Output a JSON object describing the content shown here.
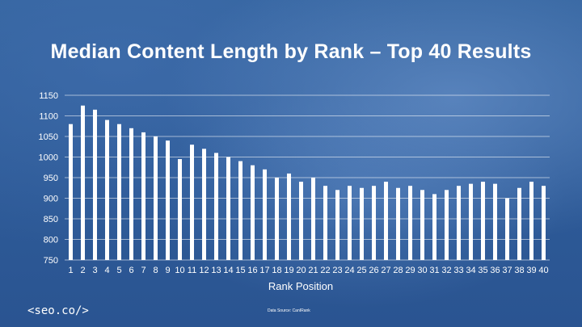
{
  "title": "Median Content Length by Rank – Top 40 Results",
  "logo_text": "<seo.co/>",
  "source_text": "Data Source: CanIRank",
  "colors": {
    "bar": "#ffffff",
    "gridline": "rgba(255,255,255,0.55)",
    "text": "#ffffff"
  },
  "chart_data": {
    "type": "bar",
    "title": "Median Content Length by Rank – Top 40 Results",
    "xlabel": "Rank Position",
    "ylabel": "",
    "ylim": [
      750,
      1150
    ],
    "yticks": [
      750,
      800,
      850,
      900,
      950,
      1000,
      1050,
      1100,
      1150
    ],
    "grid": true,
    "categories": [
      "1",
      "2",
      "3",
      "4",
      "5",
      "6",
      "7",
      "8",
      "9",
      "10",
      "11",
      "12",
      "13",
      "14",
      "15",
      "16",
      "17",
      "18",
      "19",
      "20",
      "21",
      "22",
      "23",
      "24",
      "25",
      "26",
      "27",
      "28",
      "29",
      "30",
      "31",
      "32",
      "33",
      "34",
      "35",
      "36",
      "37",
      "38",
      "39",
      "40"
    ],
    "values": [
      1080,
      1125,
      1115,
      1090,
      1080,
      1070,
      1060,
      1050,
      1040,
      995,
      1030,
      1020,
      1010,
      1000,
      990,
      980,
      970,
      950,
      960,
      940,
      950,
      930,
      920,
      930,
      925,
      930,
      940,
      925,
      930,
      920,
      910,
      920,
      930,
      935,
      940,
      935,
      900,
      925,
      940,
      930
    ]
  }
}
